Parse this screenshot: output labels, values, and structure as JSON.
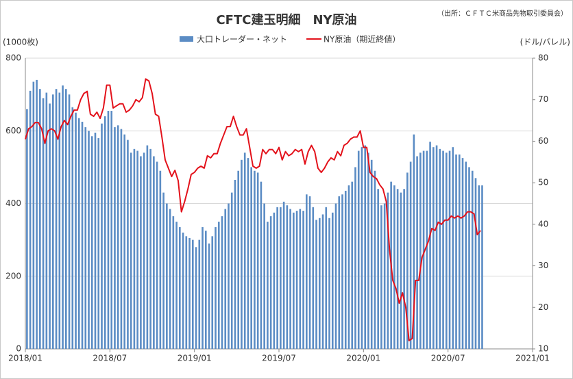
{
  "chart_data": {
    "type": "bar-line",
    "title": "CFTC建玉明細　NY原油",
    "source": "（出所：ＣＦＴＣ米商品先物取引委員会）",
    "y_label": "(1000枚)",
    "y2_label": "(ドル/バレル)",
    "categories": [
      "2018/01",
      null,
      null,
      null,
      null,
      null,
      null,
      null,
      null,
      null,
      null,
      null,
      null,
      null,
      null,
      null,
      null,
      null,
      null,
      null,
      null,
      null,
      null,
      null,
      null,
      null,
      "2018/07",
      null,
      null,
      null,
      null,
      null,
      null,
      null,
      null,
      null,
      null,
      null,
      null,
      null,
      null,
      null,
      null,
      null,
      null,
      null,
      null,
      null,
      null,
      null,
      null,
      null,
      "2019/01",
      null,
      null,
      null,
      null,
      null,
      null,
      null,
      null,
      null,
      null,
      null,
      null,
      null,
      null,
      null,
      null,
      null,
      null,
      null,
      null,
      null,
      null,
      null,
      null,
      null,
      "2019/07",
      null,
      null,
      null,
      null,
      null,
      null,
      null,
      null,
      null,
      null,
      null,
      null,
      null,
      null,
      null,
      null,
      null,
      null,
      null,
      null,
      null,
      null,
      null,
      null,
      null,
      "2020/01",
      null,
      null,
      null,
      null,
      null,
      null,
      null,
      null,
      null,
      null,
      null,
      null,
      null,
      null,
      null,
      null,
      null,
      null,
      null,
      null,
      null,
      null,
      null,
      null,
      null,
      "2020/07",
      null,
      null,
      null,
      null,
      null,
      null,
      null,
      null,
      null,
      null,
      null,
      null,
      null,
      null,
      null,
      null,
      null,
      null,
      null,
      null,
      null,
      null,
      null,
      null,
      null,
      "2021/01"
    ],
    "series": [
      {
        "name": "大口トレーダー・ネット",
        "type": "bar",
        "color": "#5b8cc4",
        "values": [
          660,
          710,
          735,
          740,
          715,
          690,
          705,
          675,
          700,
          715,
          705,
          725,
          715,
          700,
          665,
          650,
          635,
          625,
          610,
          600,
          585,
          595,
          580,
          620,
          640,
          655,
          655,
          610,
          615,
          605,
          590,
          575,
          540,
          550,
          545,
          530,
          540,
          560,
          550,
          530,
          515,
          490,
          430,
          400,
          385,
          365,
          350,
          335,
          320,
          310,
          305,
          300,
          280,
          300,
          335,
          325,
          290,
          310,
          335,
          350,
          365,
          385,
          400,
          430,
          465,
          490,
          520,
          540,
          525,
          500,
          490,
          485,
          460,
          400,
          350,
          365,
          375,
          390,
          390,
          405,
          395,
          385,
          375,
          380,
          385,
          380,
          425,
          420,
          390,
          355,
          360,
          370,
          390,
          360,
          375,
          400,
          420,
          425,
          435,
          450,
          460,
          500,
          545,
          555,
          560,
          540,
          520,
          490,
          440,
          395,
          400,
          430,
          460,
          450,
          440,
          430,
          440,
          485,
          515,
          590,
          530,
          540,
          545,
          545,
          570,
          555,
          560,
          550,
          545,
          540,
          545,
          555,
          535,
          535,
          525,
          515,
          500,
          490,
          470,
          450,
          450,
          null,
          null,
          null,
          null,
          null,
          null,
          null,
          null,
          null,
          null,
          null,
          null,
          null,
          null,
          null,
          null
        ]
      },
      {
        "name": "NY原油（期近終値）",
        "type": "line",
        "axis": "y2",
        "color": "#e3121b",
        "values": [
          60.5,
          63,
          63.5,
          64.5,
          64.5,
          63,
          59.5,
          62.5,
          63,
          62.5,
          60.5,
          63.5,
          65,
          64,
          66,
          67.5,
          67.5,
          70,
          71.5,
          72,
          66.5,
          66,
          67,
          65.5,
          68,
          73.5,
          73.5,
          68,
          68.5,
          69,
          69,
          67,
          67.5,
          68.5,
          70,
          69.5,
          70.5,
          75,
          74.5,
          71.5,
          66.5,
          66,
          61,
          55.5,
          53.5,
          51.5,
          53,
          50.5,
          43,
          45.5,
          48.5,
          52,
          52.5,
          53.5,
          54,
          53.5,
          56.5,
          56,
          57,
          57,
          59.5,
          61.5,
          63.5,
          63.5,
          66,
          63.5,
          61.5,
          61.5,
          63,
          58.5,
          54,
          53.5,
          54,
          58,
          57,
          58,
          58,
          57,
          58.5,
          55.5,
          57.5,
          56.5,
          57,
          58,
          57.5,
          58,
          54.5,
          57.5,
          59,
          57.5,
          53.5,
          52.5,
          53.5,
          55,
          56,
          55.5,
          57.5,
          56.5,
          59,
          59.5,
          60.5,
          61,
          61,
          62.5,
          58.5,
          58.5,
          52.5,
          51.5,
          51,
          49.5,
          48.5,
          45.5,
          34,
          26.5,
          24.5,
          21,
          23.5,
          20,
          12,
          12.5,
          26.5,
          26.5,
          32,
          34,
          36,
          39,
          38.5,
          40.5,
          40,
          41,
          41,
          42,
          41.5,
          42,
          41.5,
          42,
          43,
          43,
          42.5,
          37.5,
          38.5,
          null,
          null,
          null,
          null,
          null,
          null,
          null,
          null,
          null,
          null,
          null,
          null,
          null,
          null,
          null,
          null
        ]
      }
    ],
    "ylim": [
      0,
      800
    ],
    "yticks": [
      0,
      200,
      400,
      600,
      800
    ],
    "y2lim": [
      10,
      80
    ],
    "y2ticks": [
      10,
      20,
      30,
      40,
      50,
      60,
      70,
      80
    ],
    "grid": true
  }
}
